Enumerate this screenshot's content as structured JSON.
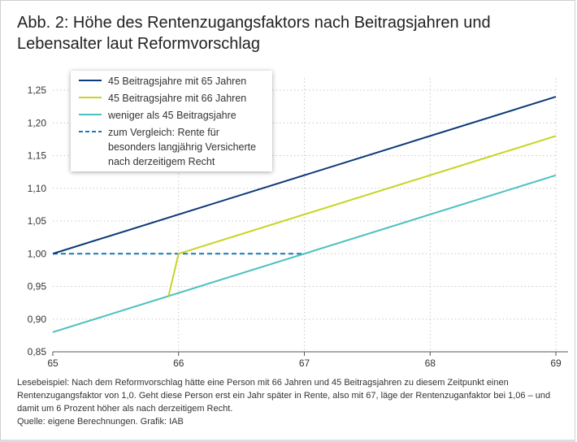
{
  "title": "Abb. 2: Höhe des Rentenzugangsfaktors nach Beitragsjahren und Lebensalter laut Reformvorschlag",
  "note": "Lesebeispiel: Nach dem Reformvorschlag hätte eine Person mit 66 Jahren und 45 Beitragsjahren zu diesem Zeitpunkt einen Rentenzugangsfaktor von 1,0. Geht diese Person erst ein Jahr später in Rente, also mit 67, läge der Rentenzuganfaktor bei 1,06 – und damit um 6 Prozent höher als nach derzeitigem Recht.",
  "source": "Quelle: eigene Berechnungen. Grafik: IAB",
  "chart_data": {
    "type": "line",
    "xlim": [
      65,
      69
    ],
    "ylim": [
      0.85,
      1.25
    ],
    "xticks": [
      65,
      66,
      67,
      68,
      69
    ],
    "xtick_labels": [
      "65",
      "66",
      "67",
      "68",
      "69"
    ],
    "yticks": [
      0.85,
      0.9,
      0.95,
      1.0,
      1.05,
      1.1,
      1.15,
      1.2,
      1.25
    ],
    "ytick_labels": [
      "0,85",
      "0,90",
      "0,95",
      "1,00",
      "1,05",
      "1,10",
      "1,15",
      "1,20",
      "1,25"
    ],
    "grid": true,
    "legend_position": "top-left",
    "series": [
      {
        "name": "45 Beitragsjahre mit 65 Jahren",
        "color": "#0b3a78",
        "style": "solid",
        "x": [
          65,
          69
        ],
        "y": [
          1.0,
          1.24
        ]
      },
      {
        "name": "45 Beitragsjahre mit 66 Jahren",
        "color": "#c8d424",
        "style": "solid",
        "x": [
          65.92,
          66,
          69
        ],
        "y": [
          0.935,
          1.0,
          1.18
        ]
      },
      {
        "name": "weniger als 45 Beitragsjahre",
        "color": "#4cc0c0",
        "style": "solid",
        "x": [
          65,
          69
        ],
        "y": [
          0.88,
          1.12
        ]
      },
      {
        "name": "zum Vergleich: Rente für besonders langjährig Versicherte nach derzeitigem Recht",
        "color": "#1a78b4",
        "style": "dashed",
        "x": [
          65,
          67
        ],
        "y": [
          1.0,
          1.0
        ]
      }
    ]
  }
}
